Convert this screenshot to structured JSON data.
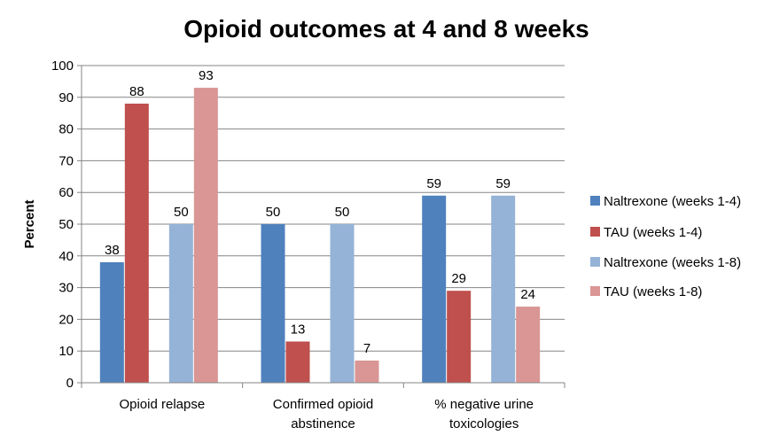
{
  "chart_data": {
    "type": "bar",
    "title": "Opioid outcomes at 4 and 8 weeks",
    "ylabel": "Percent",
    "xlabel": "",
    "ylim": [
      0,
      100
    ],
    "y_ticks": [
      0,
      10,
      20,
      30,
      40,
      50,
      60,
      70,
      80,
      90,
      100
    ],
    "grid": true,
    "legend_position": "right",
    "categories": [
      [
        "Opioid relapse"
      ],
      [
        "Confirmed opioid",
        "abstinence"
      ],
      [
        "% negative urine",
        "toxicologies"
      ]
    ],
    "series": [
      {
        "name": "Naltrexone (weeks 1-4)",
        "color": "#4F81BD",
        "values": [
          38,
          50,
          59
        ]
      },
      {
        "name": "TAU  (weeks 1-4)",
        "color": "#C0504D",
        "values": [
          88,
          13,
          29
        ]
      },
      {
        "name": "Naltrexone (weeks 1-8)",
        "color": "#95B3D7",
        "values": [
          50,
          50,
          59
        ]
      },
      {
        "name": "TAU  (weeks 1-8)",
        "color": "#D99694",
        "values": [
          93,
          7,
          24
        ]
      }
    ]
  }
}
